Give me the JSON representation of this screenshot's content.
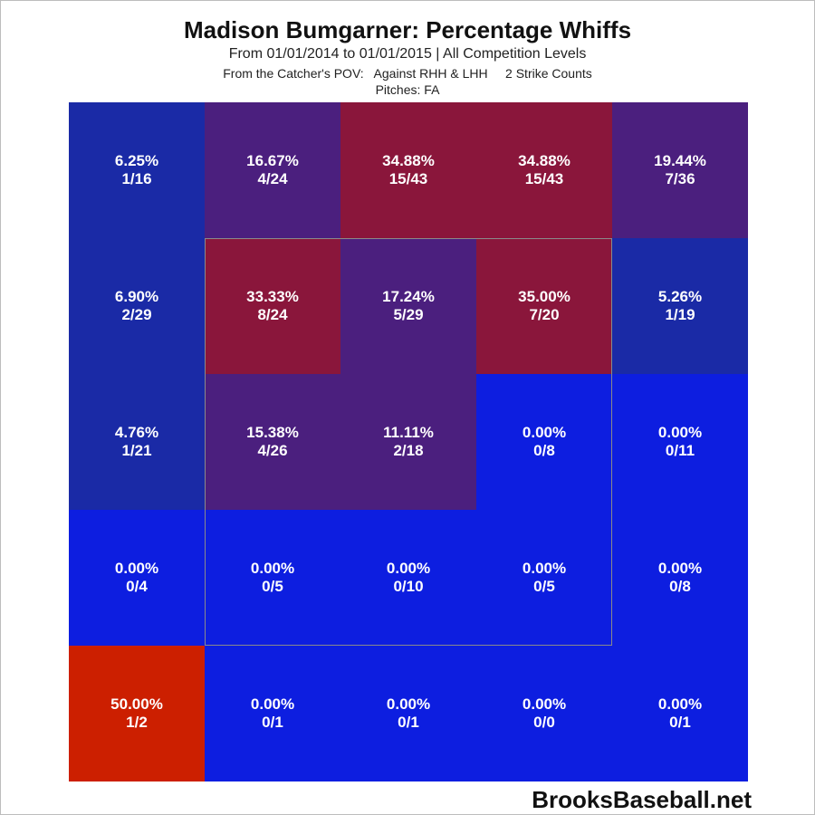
{
  "title": "Madison Bumgarner: Percentage Whiffs",
  "subtitle": "From 01/01/2014 to 01/01/2015 | All Competition Levels",
  "filters": "From the Catcher's POV:   Against RHH & LHH     2 Strike Counts",
  "pitches": "Pitches:  FA",
  "brand": "BrooksBaseball.net",
  "chart_data": {
    "type": "heatmap",
    "rows": 5,
    "cols": 5,
    "strike_zone": {
      "rows": [
        1,
        3
      ],
      "cols": [
        1,
        3
      ]
    },
    "colors": {
      "deep_blue": "#1a2aa6",
      "bright_blue": "#0d1ee0",
      "purple": "#4b1f7e",
      "maroon": "#8a163b",
      "red": "#cc1f00"
    },
    "cells": [
      [
        {
          "pct": "6.25%",
          "frac": "1/16",
          "value": 6.25,
          "color": "deep_blue"
        },
        {
          "pct": "16.67%",
          "frac": "4/24",
          "value": 16.67,
          "color": "purple"
        },
        {
          "pct": "34.88%",
          "frac": "15/43",
          "value": 34.88,
          "color": "maroon"
        },
        {
          "pct": "34.88%",
          "frac": "15/43",
          "value": 34.88,
          "color": "maroon"
        },
        {
          "pct": "19.44%",
          "frac": "7/36",
          "value": 19.44,
          "color": "purple"
        }
      ],
      [
        {
          "pct": "6.90%",
          "frac": "2/29",
          "value": 6.9,
          "color": "deep_blue"
        },
        {
          "pct": "33.33%",
          "frac": "8/24",
          "value": 33.33,
          "color": "maroon"
        },
        {
          "pct": "17.24%",
          "frac": "5/29",
          "value": 17.24,
          "color": "purple"
        },
        {
          "pct": "35.00%",
          "frac": "7/20",
          "value": 35.0,
          "color": "maroon"
        },
        {
          "pct": "5.26%",
          "frac": "1/19",
          "value": 5.26,
          "color": "deep_blue"
        }
      ],
      [
        {
          "pct": "4.76%",
          "frac": "1/21",
          "value": 4.76,
          "color": "deep_blue"
        },
        {
          "pct": "15.38%",
          "frac": "4/26",
          "value": 15.38,
          "color": "purple"
        },
        {
          "pct": "11.11%",
          "frac": "2/18",
          "value": 11.11,
          "color": "purple"
        },
        {
          "pct": "0.00%",
          "frac": "0/8",
          "value": 0.0,
          "color": "bright_blue"
        },
        {
          "pct": "0.00%",
          "frac": "0/11",
          "value": 0.0,
          "color": "bright_blue"
        }
      ],
      [
        {
          "pct": "0.00%",
          "frac": "0/4",
          "value": 0.0,
          "color": "bright_blue"
        },
        {
          "pct": "0.00%",
          "frac": "0/5",
          "value": 0.0,
          "color": "bright_blue"
        },
        {
          "pct": "0.00%",
          "frac": "0/10",
          "value": 0.0,
          "color": "bright_blue"
        },
        {
          "pct": "0.00%",
          "frac": "0/5",
          "value": 0.0,
          "color": "bright_blue"
        },
        {
          "pct": "0.00%",
          "frac": "0/8",
          "value": 0.0,
          "color": "bright_blue"
        }
      ],
      [
        {
          "pct": "50.00%",
          "frac": "1/2",
          "value": 50.0,
          "color": "red"
        },
        {
          "pct": "0.00%",
          "frac": "0/1",
          "value": 0.0,
          "color": "bright_blue"
        },
        {
          "pct": "0.00%",
          "frac": "0/1",
          "value": 0.0,
          "color": "bright_blue"
        },
        {
          "pct": "0.00%",
          "frac": "0/0",
          "value": 0.0,
          "color": "bright_blue"
        },
        {
          "pct": "0.00%",
          "frac": "0/1",
          "value": 0.0,
          "color": "bright_blue"
        }
      ]
    ]
  }
}
